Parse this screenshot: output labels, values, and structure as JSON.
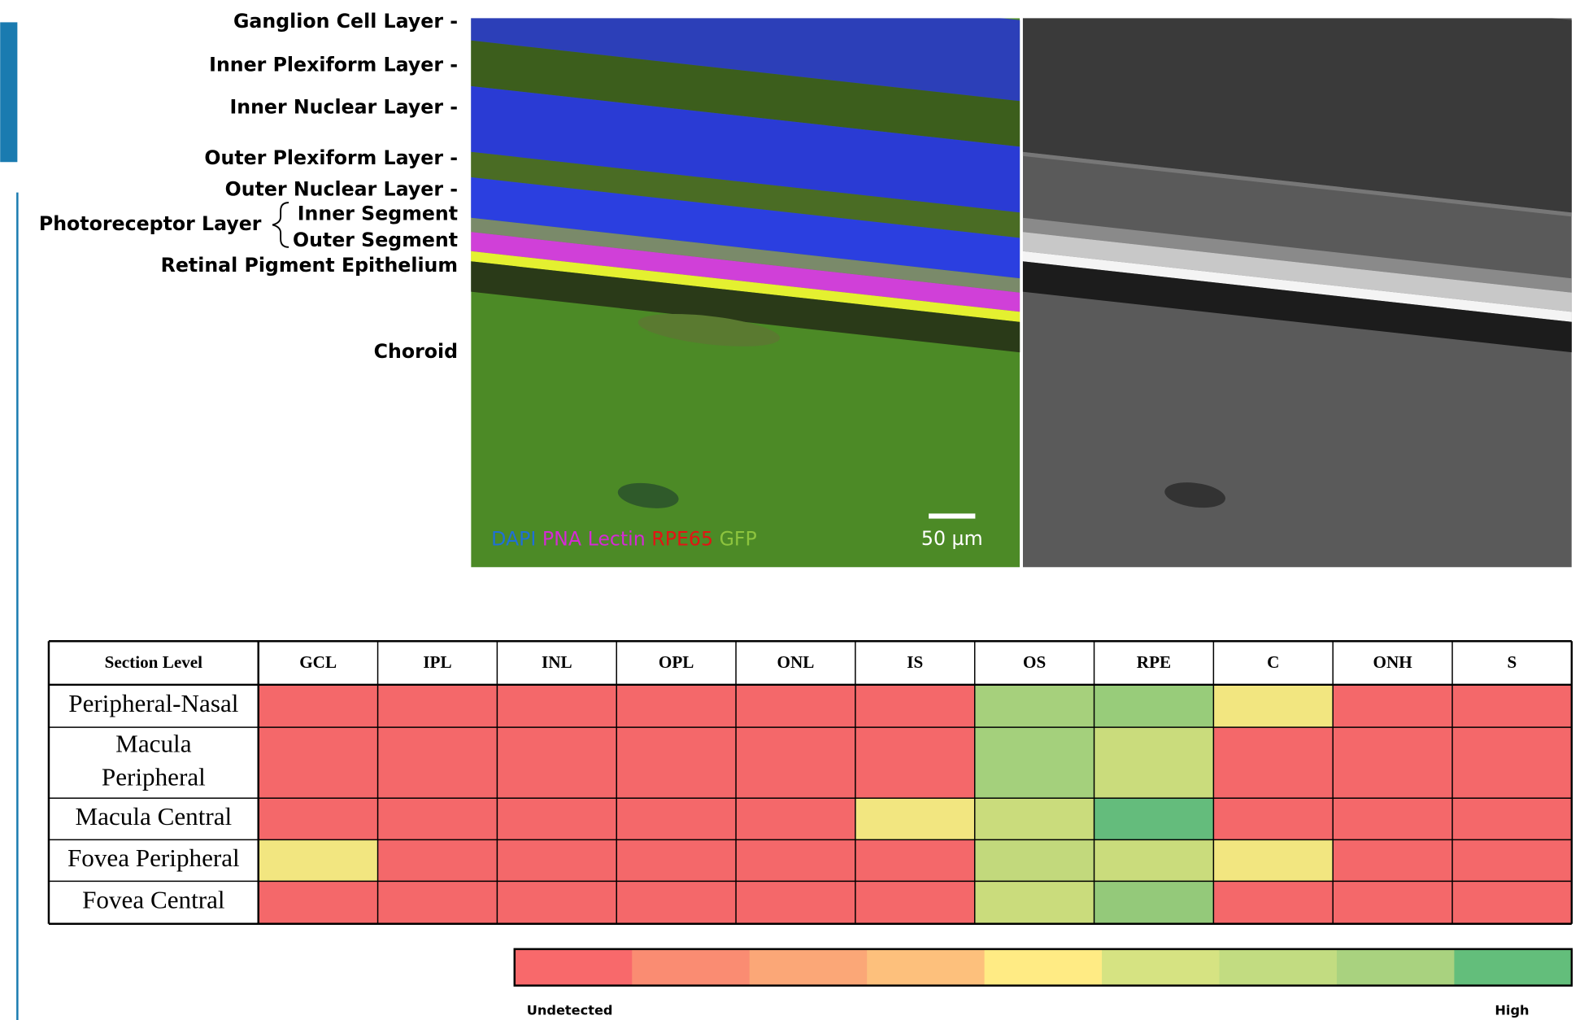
{
  "figure": {
    "layer_labels": [
      {
        "text": "Ganglion Cell Layer -",
        "y": 22
      },
      {
        "text": "Inner Plexiform Layer -",
        "y": 65
      },
      {
        "text": "Inner Nuclear Layer -",
        "y": 107
      },
      {
        "text": "Outer Plexiform Layer -",
        "y": 157
      },
      {
        "text": "Outer Nuclear Layer -",
        "y": 188
      },
      {
        "text": "Inner Segment",
        "y": 212
      },
      {
        "text": "Outer Segment",
        "y": 238
      },
      {
        "text": "Retinal Pigment Epithelium",
        "y": 263
      },
      {
        "text": "Choroid",
        "y": 348
      }
    ],
    "photoreceptor_label": "Photoreceptor Layer",
    "stains": [
      {
        "text": "DAPI",
        "color": "#1f6fd6"
      },
      {
        "text": "PNA Lectin",
        "color": "#d42ad4"
      },
      {
        "text": "RPE65",
        "color": "#e31414"
      },
      {
        "text": "GFP",
        "color": "#8dc43e"
      }
    ],
    "scale_bar": "50 µm"
  },
  "table": {
    "header": [
      "Section Level",
      "GCL",
      "IPL",
      "INL",
      "OPL",
      "ONL",
      "IS",
      "OS",
      "RPE",
      "C",
      "ONH",
      "S"
    ],
    "rows": [
      {
        "label": [
          "Peripheral-Nasal"
        ],
        "colors": [
          "#f4686a",
          "#f4686a",
          "#f4686a",
          "#f4686a",
          "#f4686a",
          "#f4686a",
          "#a6d07c",
          "#98cc7a",
          "#f2e680",
          "#f4686a",
          "#f4686a"
        ]
      },
      {
        "label": [
          "Macula",
          "Peripheral"
        ],
        "colors": [
          "#f4686a",
          "#f4686a",
          "#f4686a",
          "#f4686a",
          "#f4686a",
          "#f4686a",
          "#a4d07c",
          "#cadc7c",
          "#f4686a",
          "#f4686a",
          "#f4686a"
        ]
      },
      {
        "label": [
          "Macula Central"
        ],
        "colors": [
          "#f4686a",
          "#f4686a",
          "#f4686a",
          "#f4686a",
          "#f4686a",
          "#f2e680",
          "#cadc7c",
          "#64bc7c",
          "#f4686a",
          "#f4686a",
          "#f4686a"
        ]
      },
      {
        "label": [
          "Fovea Peripheral"
        ],
        "colors": [
          "#f2e680",
          "#f4686a",
          "#f4686a",
          "#f4686a",
          "#f4686a",
          "#f4686a",
          "#c2d97c",
          "#cadc7c",
          "#f2e680",
          "#f4686a",
          "#f4686a"
        ]
      },
      {
        "label": [
          "Fovea Central"
        ],
        "colors": [
          "#f4686a",
          "#f4686a",
          "#f4686a",
          "#f4686a",
          "#f4686a",
          "#f4686a",
          "#cadc7c",
          "#94c97a",
          "#f4686a",
          "#f4686a",
          "#f4686a"
        ]
      }
    ]
  },
  "colorbar": {
    "colors": [
      "#f8696b",
      "#fa8c72",
      "#fba777",
      "#fdc07c",
      "#ffeb84",
      "#d6e382",
      "#c2dc81",
      "#a9d27f",
      "#63be7b"
    ],
    "low": "Undetected",
    "high": "High"
  }
}
